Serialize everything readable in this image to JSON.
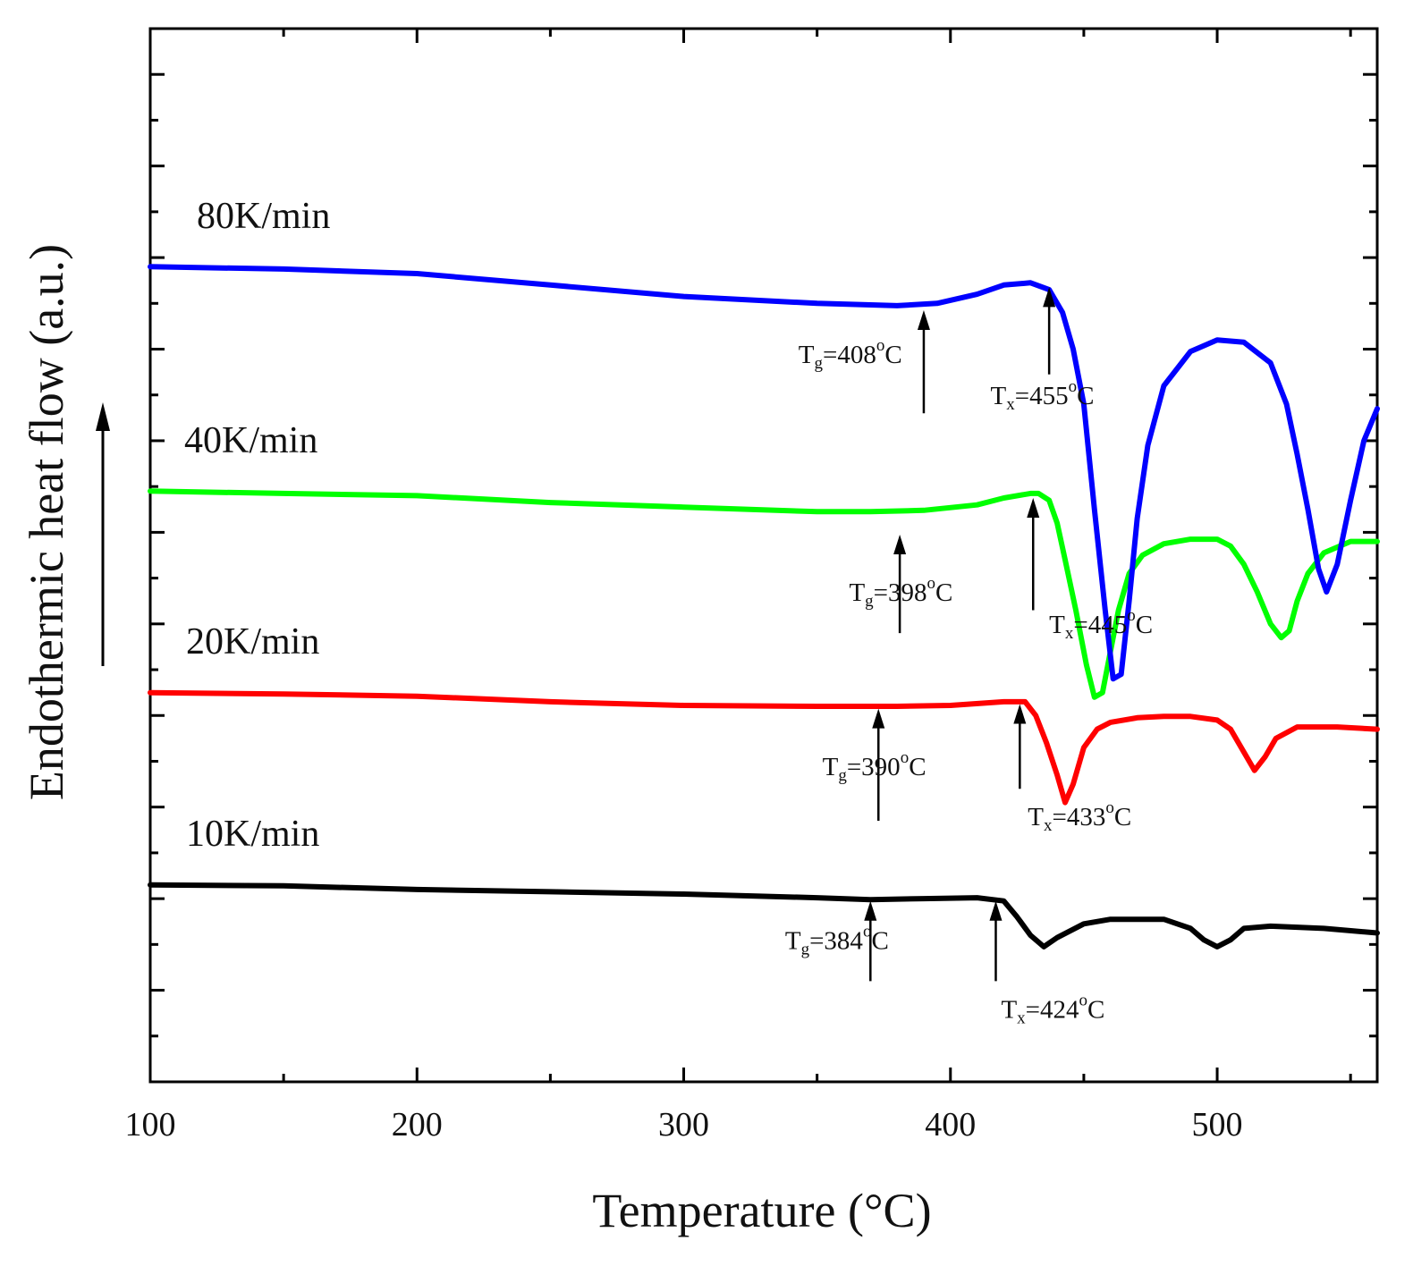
{
  "chart_data": {
    "type": "line",
    "title": "",
    "xlabel": "Temperature (°C)",
    "ylabel": "Endothermic heat flow (a.u.)",
    "xlim": [
      100,
      560
    ],
    "ylim": [
      0,
      23
    ],
    "y_ticks_labeled": false,
    "x_ticks": [
      100,
      200,
      300,
      400,
      500
    ],
    "x_tick_labels": [
      "100",
      "200",
      "300",
      "400",
      "500"
    ],
    "grid": false,
    "series": [
      {
        "name": "10K/min",
        "color": "#000000",
        "x": [
          100,
          150,
          200,
          250,
          300,
          350,
          370,
          390,
          410,
          420,
          425,
          430,
          435,
          440,
          450,
          460,
          480,
          490,
          495,
          500,
          505,
          510,
          520,
          540,
          560
        ],
        "y": [
          4.3,
          4.28,
          4.2,
          4.15,
          4.1,
          4.02,
          3.98,
          4.0,
          4.02,
          3.95,
          3.6,
          3.2,
          2.95,
          3.15,
          3.45,
          3.55,
          3.55,
          3.35,
          3.1,
          2.95,
          3.1,
          3.35,
          3.4,
          3.35,
          3.25
        ],
        "annotations": [
          {
            "main": "T",
            "sub": "g",
            "value": "=384",
            "deg": "o",
            "unit": "C",
            "arrow_x": 370,
            "arrow_y_tail": 2.2,
            "arrow_y_head": 3.95,
            "text_x": 338,
            "text_y": 2.9
          },
          {
            "main": "T",
            "sub": "x",
            "value": "=424",
            "deg": "o",
            "unit": "C",
            "arrow_x": 417,
            "arrow_y_tail": 2.2,
            "arrow_y_head": 3.95,
            "text_x": 419,
            "text_y": 1.4
          }
        ]
      },
      {
        "name": "20K/min",
        "color": "#ff0000",
        "x": [
          100,
          150,
          200,
          250,
          300,
          350,
          380,
          400,
          420,
          428,
          432,
          436,
          440,
          443,
          446,
          450,
          455,
          460,
          470,
          480,
          490,
          500,
          505,
          510,
          514,
          518,
          522,
          530,
          545,
          560
        ],
        "y": [
          8.5,
          8.47,
          8.42,
          8.3,
          8.22,
          8.2,
          8.2,
          8.22,
          8.3,
          8.3,
          8.0,
          7.4,
          6.7,
          6.1,
          6.5,
          7.3,
          7.7,
          7.85,
          7.95,
          7.98,
          7.98,
          7.9,
          7.7,
          7.2,
          6.8,
          7.1,
          7.5,
          7.75,
          7.75,
          7.7
        ],
        "annotations": [
          {
            "main": "T",
            "sub": "g",
            "value": "=390",
            "deg": "o",
            "unit": "C",
            "arrow_x": 373,
            "arrow_y_tail": 5.7,
            "arrow_y_head": 8.15,
            "text_x": 352,
            "text_y": 6.7
          },
          {
            "main": "T",
            "sub": "x",
            "value": "=433",
            "deg": "o",
            "unit": "C",
            "arrow_x": 426,
            "arrow_y_tail": 6.4,
            "arrow_y_head": 8.25,
            "text_x": 429,
            "text_y": 5.6
          }
        ]
      },
      {
        "name": "40K/min",
        "color": "#00ff00",
        "x": [
          100,
          150,
          200,
          250,
          300,
          350,
          370,
          390,
          410,
          420,
          430,
          433,
          437,
          440,
          443,
          447,
          451,
          454,
          457,
          460,
          463,
          467,
          472,
          480,
          490,
          500,
          505,
          510,
          515,
          520,
          524,
          527,
          530,
          534,
          540,
          550,
          560
        ],
        "y": [
          12.9,
          12.85,
          12.8,
          12.65,
          12.55,
          12.45,
          12.45,
          12.48,
          12.6,
          12.75,
          12.85,
          12.85,
          12.7,
          12.2,
          11.4,
          10.3,
          9.1,
          8.4,
          8.5,
          9.4,
          10.3,
          11.1,
          11.5,
          11.75,
          11.85,
          11.85,
          11.7,
          11.3,
          10.7,
          10.0,
          9.7,
          9.85,
          10.5,
          11.1,
          11.55,
          11.8,
          11.8
        ],
        "annotations": [
          {
            "main": "T",
            "sub": "g",
            "value": "=398",
            "deg": "o",
            "unit": "C",
            "arrow_x": 381,
            "arrow_y_tail": 9.8,
            "arrow_y_head": 11.95,
            "text_x": 362,
            "text_y": 10.5
          },
          {
            "main": "T",
            "sub": "x",
            "value": "=445",
            "deg": "o",
            "unit": "C",
            "arrow_x": 431,
            "arrow_y_tail": 10.3,
            "arrow_y_head": 12.75,
            "text_x": 437,
            "text_y": 9.8
          }
        ]
      },
      {
        "name": "80K/min",
        "color": "#0000ff",
        "x": [
          100,
          150,
          200,
          250,
          300,
          350,
          380,
          395,
          410,
          420,
          430,
          437,
          442,
          446,
          450,
          454,
          458,
          461,
          464,
          467,
          470,
          474,
          480,
          490,
          500,
          510,
          520,
          526,
          530,
          534,
          538,
          541,
          545,
          550,
          555,
          560
        ],
        "y": [
          17.8,
          17.75,
          17.65,
          17.4,
          17.15,
          17.0,
          16.95,
          17.0,
          17.2,
          17.4,
          17.45,
          17.3,
          16.8,
          16.0,
          14.8,
          12.5,
          10.3,
          8.8,
          8.9,
          10.5,
          12.3,
          13.9,
          15.2,
          15.95,
          16.2,
          16.15,
          15.7,
          14.8,
          13.7,
          12.5,
          11.2,
          10.7,
          11.3,
          12.7,
          14.0,
          14.7
        ],
        "annotations": [
          {
            "main": "T",
            "sub": "g",
            "value": "=408",
            "deg": "o",
            "unit": "C",
            "arrow_x": 390,
            "arrow_y_tail": 14.6,
            "arrow_y_head": 16.85,
            "text_x": 343,
            "text_y": 15.7
          },
          {
            "main": "T",
            "sub": "x",
            "value": "=455",
            "deg": "o",
            "unit": "C",
            "arrow_x": 437,
            "arrow_y_tail": 15.45,
            "arrow_y_head": 17.35,
            "text_x": 415,
            "text_y": 14.8
          }
        ]
      }
    ],
    "side_arrow": {
      "direction": "up",
      "meaning": "endothermic"
    }
  }
}
